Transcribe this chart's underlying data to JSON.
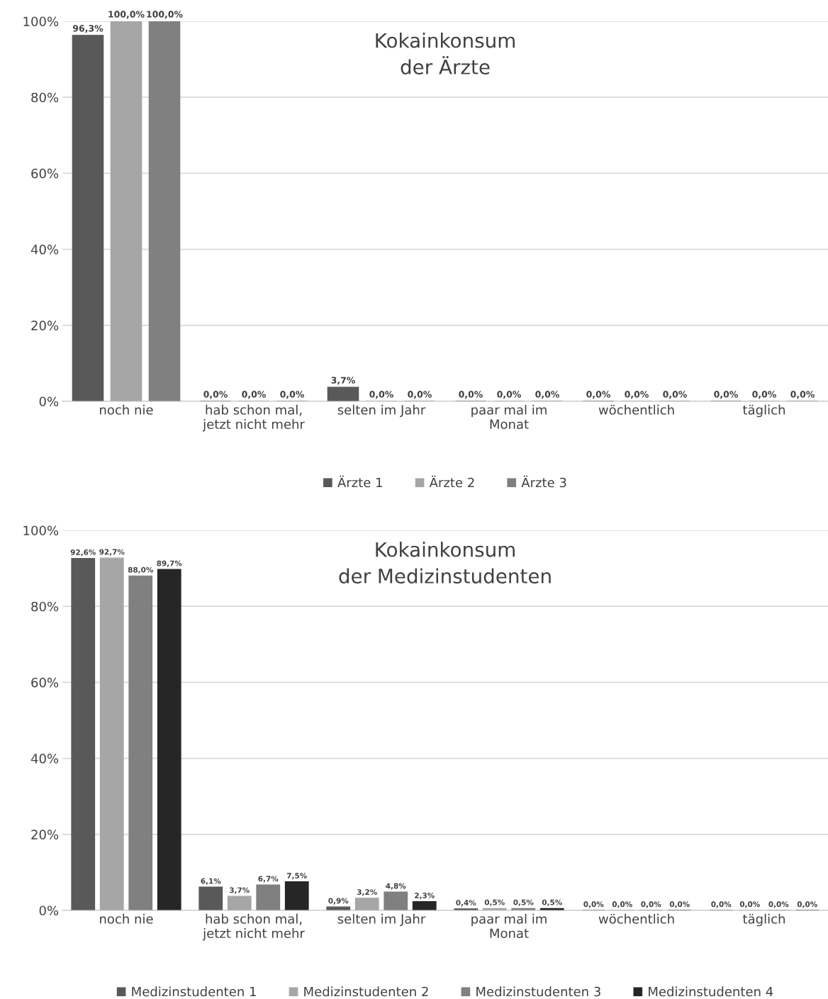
{
  "chart_data": [
    {
      "type": "bar",
      "title": "Kokainkonsum\nder Ärzte",
      "categories": [
        "noch nie",
        "hab schon mal,\njetzt nicht mehr",
        "selten im Jahr",
        "paar mal im\nMonat",
        "wöchentlich",
        "täglich"
      ],
      "series": [
        {
          "name": "Ärzte 1",
          "color": "#595959",
          "values": [
            96.3,
            0,
            3.7,
            0,
            0,
            0
          ],
          "value_labels": [
            "96,3%",
            "0,0%",
            "3,7%",
            "0,0%",
            "0,0%",
            "0,0%"
          ]
        },
        {
          "name": "Ärzte 2",
          "color": "#a6a6a6",
          "values": [
            100,
            0,
            0,
            0,
            0,
            0
          ],
          "value_labels": [
            "100,0%",
            "0,0%",
            "0,0%",
            "0,0%",
            "0,0%",
            "0,0%"
          ]
        },
        {
          "name": "Ärzte 3",
          "color": "#808080",
          "values": [
            100,
            0,
            0,
            0,
            0,
            0
          ],
          "value_labels": [
            "100,0%",
            "0,0%",
            "0,0%",
            "0,0%",
            "0,0%",
            "0,0%"
          ]
        }
      ],
      "ylim": [
        0,
        100
      ],
      "yticks": [
        {
          "value": 0,
          "label": "0%"
        },
        {
          "value": 20,
          "label": "20%"
        },
        {
          "value": 40,
          "label": "40%"
        },
        {
          "value": 60,
          "label": "60%"
        },
        {
          "value": 80,
          "label": "80%"
        },
        {
          "value": 100,
          "label": "100%"
        }
      ],
      "grid": "y",
      "legend": "bottom"
    },
    {
      "type": "bar",
      "title": "Kokainkonsum\nder Medizinstudenten",
      "categories": [
        "noch nie",
        "hab schon mal,\njetzt nicht mehr",
        "selten im Jahr",
        "paar mal im\nMonat",
        "wöchentlich",
        "täglich"
      ],
      "series": [
        {
          "name": "Medizinstudenten 1",
          "color": "#595959",
          "values": [
            92.6,
            6.1,
            0.9,
            0.4,
            0,
            0
          ],
          "value_labels": [
            "92,6%",
            "6,1%",
            "0,9%",
            "0,4%",
            "0,0%",
            "0,0%"
          ]
        },
        {
          "name": "Medizinstudenten 2",
          "color": "#a6a6a6",
          "values": [
            92.7,
            3.7,
            3.2,
            0.5,
            0,
            0
          ],
          "value_labels": [
            "92,7%",
            "3,7%",
            "3,2%",
            "0,5%",
            "0,0%",
            "0,0%"
          ]
        },
        {
          "name": "Medizinstudenten 3",
          "color": "#808080",
          "values": [
            88.0,
            6.7,
            4.8,
            0.5,
            0,
            0
          ],
          "value_labels": [
            "88,0%",
            "6,7%",
            "4,8%",
            "0,5%",
            "0,0%",
            "0,0%"
          ]
        },
        {
          "name": "Medizinstudenten 4",
          "color": "#262626",
          "values": [
            89.7,
            7.5,
            2.3,
            0.5,
            0,
            0
          ],
          "value_labels": [
            "89,7%",
            "7,5%",
            "2,3%",
            "0,5%",
            "0,0%",
            "0,0%"
          ]
        }
      ],
      "ylim": [
        0,
        100
      ],
      "yticks": [
        {
          "value": 0,
          "label": "0%"
        },
        {
          "value": 20,
          "label": "20%"
        },
        {
          "value": 40,
          "label": "40%"
        },
        {
          "value": 60,
          "label": "60%"
        },
        {
          "value": 80,
          "label": "80%"
        },
        {
          "value": 100,
          "label": "100%"
        }
      ],
      "grid": "y",
      "legend": "bottom"
    }
  ]
}
